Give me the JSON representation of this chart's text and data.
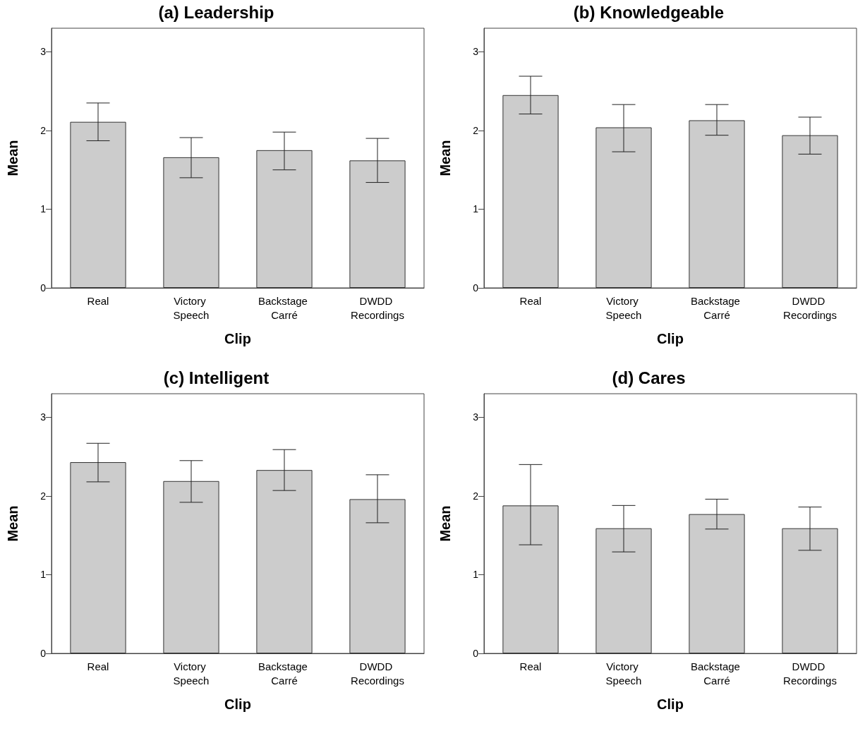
{
  "chart_data": [
    {
      "type": "bar",
      "title": "(a) Leadership",
      "xlabel": "Clip",
      "ylabel": "Mean",
      "categories": [
        "Real",
        "Victory Speech",
        "Backstage Carré",
        "DWDD Recordings"
      ],
      "values": [
        2.11,
        1.66,
        1.75,
        1.62
      ],
      "errors": [
        [
          1.87,
          2.35
        ],
        [
          1.4,
          1.91
        ],
        [
          1.5,
          1.98
        ],
        [
          1.34,
          1.9
        ]
      ],
      "color": "#cccccc",
      "ylim": [
        0,
        3.3
      ],
      "yticks": [
        0,
        1,
        2,
        3
      ],
      "grid": false
    },
    {
      "type": "bar",
      "title": "(b) Knowledgeable",
      "xlabel": "Clip",
      "ylabel": "Mean",
      "categories": [
        "Real",
        "Victory Speech",
        "Backstage Carré",
        "DWDD Recordings"
      ],
      "values": [
        2.45,
        2.04,
        2.13,
        1.94
      ],
      "errors": [
        [
          2.21,
          2.69
        ],
        [
          1.73,
          2.33
        ],
        [
          1.94,
          2.33
        ],
        [
          1.7,
          2.17
        ]
      ],
      "color": "#cccccc",
      "ylim": [
        0,
        3.3
      ],
      "yticks": [
        0,
        1,
        2,
        3
      ],
      "grid": false
    },
    {
      "type": "bar",
      "title": "(c) Intelligent",
      "xlabel": "Clip",
      "ylabel": "Mean",
      "categories": [
        "Real",
        "Victory Speech",
        "Backstage Carré",
        "DWDD Recordings"
      ],
      "values": [
        2.43,
        2.19,
        2.33,
        1.96
      ],
      "errors": [
        [
          2.18,
          2.67
        ],
        [
          1.92,
          2.45
        ],
        [
          2.07,
          2.59
        ],
        [
          1.66,
          2.27
        ]
      ],
      "color": "#cccccc",
      "ylim": [
        0,
        3.3
      ],
      "yticks": [
        0,
        1,
        2,
        3
      ],
      "grid": false
    },
    {
      "type": "bar",
      "title": "(d) Cares",
      "xlabel": "Clip",
      "ylabel": "Mean",
      "categories": [
        "Real",
        "Victory Speech",
        "Backstage Carré",
        "DWDD Recordings"
      ],
      "values": [
        1.88,
        1.59,
        1.77,
        1.59
      ],
      "errors": [
        [
          1.38,
          2.4
        ],
        [
          1.29,
          1.88
        ],
        [
          1.58,
          1.96
        ],
        [
          1.31,
          1.86
        ]
      ],
      "color": "#cccccc",
      "ylim": [
        0,
        3.3
      ],
      "yticks": [
        0,
        1,
        2,
        3
      ],
      "grid": false
    }
  ]
}
